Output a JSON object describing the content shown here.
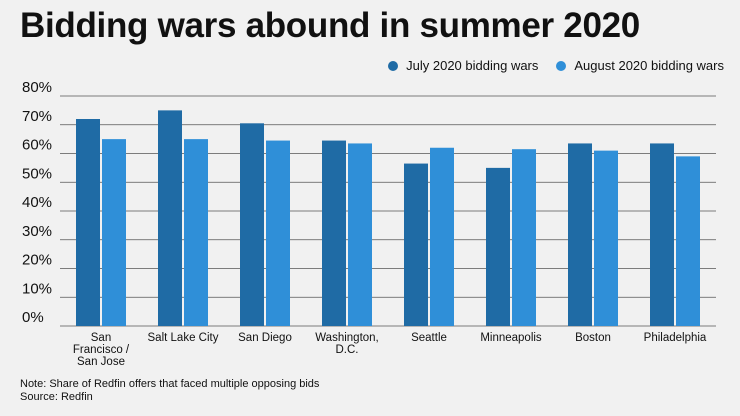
{
  "title": "Bidding wars abound in summer 2020",
  "note": "Note: Share of Redfin offers that faced multiple opposing bids",
  "source": "Source: Redfin",
  "colors": {
    "july": "#1f6ba5",
    "august": "#2f8fd8",
    "grid": "#555555",
    "background": "#f1f1f1"
  },
  "chart_data": {
    "type": "bar",
    "categories": [
      [
        "San",
        "Francisco /",
        "San Jose"
      ],
      [
        "Salt Lake City"
      ],
      [
        "San Diego"
      ],
      [
        "Washington,",
        "D.C."
      ],
      [
        "Seattle"
      ],
      [
        "Minneapolis"
      ],
      [
        "Boston"
      ],
      [
        "Philadelphia"
      ]
    ],
    "series": [
      {
        "name": "July 2020 bidding wars",
        "values": [
          72,
          75,
          70.5,
          64.5,
          56.5,
          55,
          63.5,
          63.5
        ]
      },
      {
        "name": "August 2020 bidding wars",
        "values": [
          65,
          65,
          64.5,
          63.5,
          62,
          61.5,
          61,
          59
        ]
      }
    ],
    "ylim": [
      0,
      80
    ],
    "yticks": [
      "0%",
      "10%",
      "20%",
      "30%",
      "40%",
      "50%",
      "60%",
      "70%",
      "80%"
    ],
    "grid": true,
    "legend": "top-right"
  }
}
